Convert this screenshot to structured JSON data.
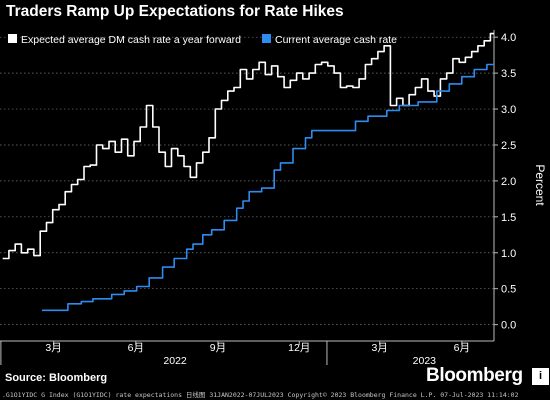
{
  "chart_data": {
    "type": "line",
    "title": "Traders Ramp Up Expectations for Rate Hikes",
    "ylabel": "Percent",
    "xlabel": "",
    "ylim": [
      -0.2,
      4.1
    ],
    "yticks": [
      0.0,
      0.5,
      1.0,
      1.5,
      2.0,
      2.5,
      3.0,
      3.5,
      4.0
    ],
    "xticks": [
      {
        "date": "2022-03-01",
        "label": "3月"
      },
      {
        "date": "2022-06-01",
        "label": "6月"
      },
      {
        "date": "2022-09-01",
        "label": "9月"
      },
      {
        "date": "2022-12-01",
        "label": "12月"
      },
      {
        "date": "2023-03-01",
        "label": "3月"
      },
      {
        "date": "2023-06-01",
        "label": "6月"
      }
    ],
    "year_labels": [
      {
        "date": "2022-07-15",
        "label": "2022"
      },
      {
        "date": "2023-04-20",
        "label": "2023"
      }
    ],
    "year_separators": [
      "2022-01-01",
      "2023-01-01"
    ],
    "xrange": [
      "2021-12-31",
      "2023-07-07"
    ],
    "grid": true,
    "legend_position": "top-left",
    "series": [
      {
        "name": "Expected average DM cash rate a year forward",
        "color": "#ffffff",
        "style": "step",
        "points": [
          [
            "2022-01-03",
            0.92
          ],
          [
            "2022-01-10",
            1.03
          ],
          [
            "2022-01-17",
            1.12
          ],
          [
            "2022-01-24",
            1.0
          ],
          [
            "2022-01-31",
            1.05
          ],
          [
            "2022-02-07",
            0.96
          ],
          [
            "2022-02-14",
            1.3
          ],
          [
            "2022-02-21",
            1.42
          ],
          [
            "2022-02-28",
            1.6
          ],
          [
            "2022-03-07",
            1.67
          ],
          [
            "2022-03-14",
            1.85
          ],
          [
            "2022-03-21",
            1.95
          ],
          [
            "2022-03-28",
            2.02
          ],
          [
            "2022-04-04",
            2.2
          ],
          [
            "2022-04-11",
            2.22
          ],
          [
            "2022-04-18",
            2.5
          ],
          [
            "2022-04-25",
            2.45
          ],
          [
            "2022-05-02",
            2.55
          ],
          [
            "2022-05-09",
            2.4
          ],
          [
            "2022-05-16",
            2.58
          ],
          [
            "2022-05-23",
            2.35
          ],
          [
            "2022-05-30",
            2.55
          ],
          [
            "2022-06-06",
            2.75
          ],
          [
            "2022-06-13",
            3.05
          ],
          [
            "2022-06-20",
            2.75
          ],
          [
            "2022-06-27",
            2.4
          ],
          [
            "2022-07-04",
            2.2
          ],
          [
            "2022-07-11",
            2.45
          ],
          [
            "2022-07-18",
            2.35
          ],
          [
            "2022-07-25",
            2.2
          ],
          [
            "2022-08-01",
            2.05
          ],
          [
            "2022-08-08",
            2.25
          ],
          [
            "2022-08-15",
            2.4
          ],
          [
            "2022-08-22",
            2.6
          ],
          [
            "2022-08-29",
            3.0
          ],
          [
            "2022-09-05",
            3.12
          ],
          [
            "2022-09-12",
            3.25
          ],
          [
            "2022-09-19",
            3.3
          ],
          [
            "2022-09-26",
            3.55
          ],
          [
            "2022-10-03",
            3.42
          ],
          [
            "2022-10-10",
            3.55
          ],
          [
            "2022-10-17",
            3.65
          ],
          [
            "2022-10-24",
            3.48
          ],
          [
            "2022-10-31",
            3.6
          ],
          [
            "2022-11-07",
            3.45
          ],
          [
            "2022-11-14",
            3.3
          ],
          [
            "2022-11-21",
            3.4
          ],
          [
            "2022-11-28",
            3.5
          ],
          [
            "2022-12-05",
            3.42
          ],
          [
            "2022-12-12",
            3.5
          ],
          [
            "2022-12-19",
            3.62
          ],
          [
            "2022-12-26",
            3.65
          ],
          [
            "2023-01-02",
            3.6
          ],
          [
            "2023-01-09",
            3.5
          ],
          [
            "2023-01-16",
            3.3
          ],
          [
            "2023-01-23",
            3.32
          ],
          [
            "2023-01-30",
            3.3
          ],
          [
            "2023-02-06",
            3.42
          ],
          [
            "2023-02-13",
            3.62
          ],
          [
            "2023-02-20",
            3.7
          ],
          [
            "2023-02-27",
            3.8
          ],
          [
            "2023-03-06",
            3.88
          ],
          [
            "2023-03-13",
            3.05
          ],
          [
            "2023-03-20",
            3.15
          ],
          [
            "2023-03-27",
            3.05
          ],
          [
            "2023-04-03",
            3.2
          ],
          [
            "2023-04-10",
            3.3
          ],
          [
            "2023-04-17",
            3.42
          ],
          [
            "2023-04-24",
            3.25
          ],
          [
            "2023-05-01",
            3.18
          ],
          [
            "2023-05-08",
            3.42
          ],
          [
            "2023-05-15",
            3.5
          ],
          [
            "2023-05-22",
            3.7
          ],
          [
            "2023-05-29",
            3.65
          ],
          [
            "2023-06-05",
            3.72
          ],
          [
            "2023-06-12",
            3.8
          ],
          [
            "2023-06-19",
            3.88
          ],
          [
            "2023-06-26",
            3.95
          ],
          [
            "2023-07-03",
            4.05
          ],
          [
            "2023-07-07",
            4.05
          ]
        ]
      },
      {
        "name": "Current average cash rate",
        "color": "#2e8cf0",
        "style": "step",
        "points": [
          [
            "2022-02-16",
            0.2
          ],
          [
            "2022-03-17",
            0.29
          ],
          [
            "2022-04-01",
            0.32
          ],
          [
            "2022-04-14",
            0.36
          ],
          [
            "2022-05-05",
            0.42
          ],
          [
            "2022-05-19",
            0.47
          ],
          [
            "2022-06-02",
            0.53
          ],
          [
            "2022-06-16",
            0.65
          ],
          [
            "2022-07-01",
            0.8
          ],
          [
            "2022-07-14",
            0.92
          ],
          [
            "2022-07-28",
            1.05
          ],
          [
            "2022-08-04",
            1.12
          ],
          [
            "2022-08-15",
            1.25
          ],
          [
            "2022-08-25",
            1.32
          ],
          [
            "2022-09-08",
            1.45
          ],
          [
            "2022-09-22",
            1.62
          ],
          [
            "2022-09-29",
            1.72
          ],
          [
            "2022-10-06",
            1.85
          ],
          [
            "2022-10-20",
            1.9
          ],
          [
            "2022-11-03",
            2.15
          ],
          [
            "2022-11-10",
            2.25
          ],
          [
            "2022-11-24",
            2.45
          ],
          [
            "2022-12-08",
            2.6
          ],
          [
            "2022-12-15",
            2.7
          ],
          [
            "2023-02-02",
            2.83
          ],
          [
            "2023-02-16",
            2.9
          ],
          [
            "2023-03-09",
            2.98
          ],
          [
            "2023-03-23",
            3.05
          ],
          [
            "2023-04-13",
            3.1
          ],
          [
            "2023-05-04",
            3.25
          ],
          [
            "2023-05-18",
            3.35
          ],
          [
            "2023-06-01",
            3.45
          ],
          [
            "2023-06-15",
            3.55
          ],
          [
            "2023-06-29",
            3.62
          ],
          [
            "2023-07-07",
            3.62
          ]
        ]
      }
    ]
  },
  "source_label": "Source: Bloomberg",
  "brand": {
    "logo_text": "Bloomberg",
    "tag_text": "i"
  },
  "footer_text": ".G1O1YIDC G Index (G1O1YIDC) rate expectations  日线图 31JAN2022-07JUL2023 Copyright© 2023 Bloomberg Finance L.P. 07-Jul-2023 11:14:02"
}
